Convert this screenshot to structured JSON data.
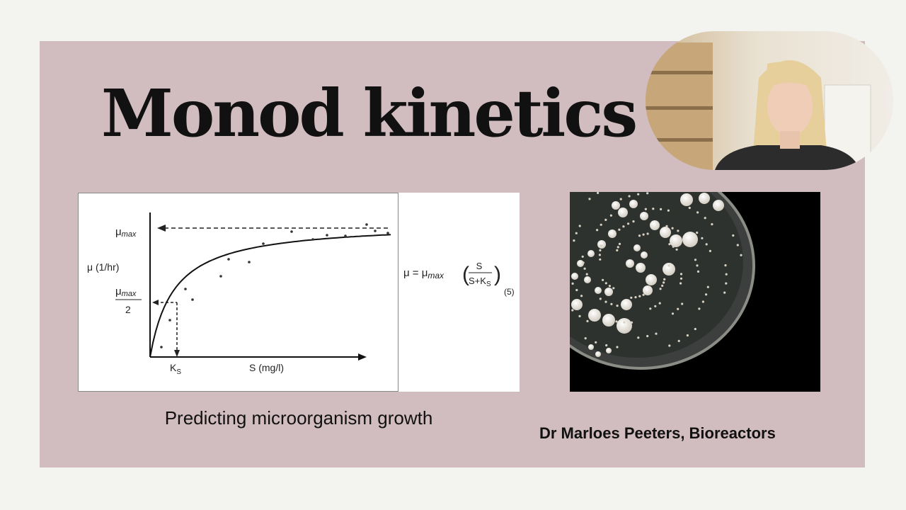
{
  "slide": {
    "title": "Monod kinetics",
    "diagram": {
      "y_max_label": {
        "main": "μ",
        "sub": "max"
      },
      "y_axis_label": "μ (1/hr)",
      "y_half_label": {
        "main": "μ",
        "sub": "max",
        "denominator": "2"
      },
      "ks_label": {
        "main": "K",
        "sub": "S"
      },
      "x_axis_label": "S (mg/l)",
      "equation": {
        "left": "μ = μ",
        "sub": "max",
        "numerator": "S",
        "denominator": "S+K",
        "denominator_sub": "S",
        "reference": "(5)"
      }
    },
    "caption": "Predicting microorganism growth",
    "presenter": "Dr Marloes Peeters, Bioreactors"
  }
}
